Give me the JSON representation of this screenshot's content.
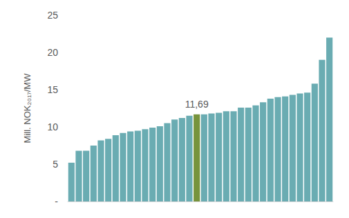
{
  "chart_data": {
    "type": "bar",
    "y_label": "Mill. NOK₂₀₁₇/MW",
    "categories": [
      null,
      null,
      null,
      null,
      null,
      null,
      null,
      null,
      null,
      null,
      null,
      null,
      null,
      null,
      null,
      null,
      null,
      null,
      null,
      null,
      null,
      null,
      null,
      null,
      null,
      null,
      null,
      null,
      null,
      null,
      null,
      null,
      null,
      null,
      null,
      null
    ],
    "values": [
      5.2,
      6.8,
      6.8,
      7.5,
      8.2,
      8.4,
      8.9,
      9.2,
      9.4,
      9.5,
      9.7,
      9.9,
      10.1,
      10.5,
      11.0,
      11.2,
      11.5,
      11.69,
      11.7,
      11.8,
      11.9,
      12.1,
      12.1,
      12.6,
      12.6,
      12.9,
      13.3,
      13.8,
      14.0,
      14.1,
      14.3,
      14.5,
      14.6,
      15.8,
      19.0,
      22.0
    ],
    "value_labels": [
      null,
      null,
      null,
      null,
      null,
      null,
      null,
      null,
      null,
      null,
      null,
      null,
      null,
      null,
      null,
      null,
      null,
      "11,69",
      null,
      null,
      null,
      null,
      null,
      null,
      null,
      null,
      null,
      null,
      null,
      null,
      null,
      null,
      null,
      null,
      null,
      null
    ],
    "colors": [
      "#6aacb2",
      "#6aacb2",
      "#6aacb2",
      "#6aacb2",
      "#6aacb2",
      "#6aacb2",
      "#6aacb2",
      "#6aacb2",
      "#6aacb2",
      "#6aacb2",
      "#6aacb2",
      "#6aacb2",
      "#6aacb2",
      "#6aacb2",
      "#6aacb2",
      "#6aacb2",
      "#6aacb2",
      "#77933c",
      "#6aacb2",
      "#6aacb2",
      "#6aacb2",
      "#6aacb2",
      "#6aacb2",
      "#6aacb2",
      "#6aacb2",
      "#6aacb2",
      "#6aacb2",
      "#6aacb2",
      "#6aacb2",
      "#6aacb2",
      "#6aacb2",
      "#6aacb2",
      "#6aacb2",
      "#6aacb2",
      "#6aacb2",
      "#6aacb2"
    ],
    "ylim": [
      0,
      25
    ],
    "yticks": [
      {
        "value": 0,
        "label": "-"
      },
      5,
      10,
      15,
      20,
      25
    ],
    "grid": false
  }
}
